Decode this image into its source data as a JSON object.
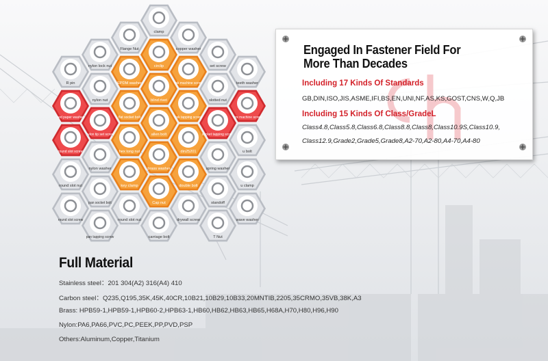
{
  "hexagons": [
    {
      "label": "clamp",
      "style": "gray"
    },
    {
      "label": "Flange Nut",
      "style": "gray"
    },
    {
      "label": "copper washer",
      "style": "gray"
    },
    {
      "label": "nylon lock nut",
      "style": "gray"
    },
    {
      "label": "circlip",
      "style": "orange"
    },
    {
      "label": "set screw",
      "style": "gray"
    },
    {
      "label": "R pin",
      "style": "gray"
    },
    {
      "label": "EPDM washer",
      "style": "orange"
    },
    {
      "label": "csk machine screw",
      "style": "orange"
    },
    {
      "label": "teeth washer",
      "style": "gray"
    },
    {
      "label": "nylon nut",
      "style": "gray"
    },
    {
      "label": "blind rivet",
      "style": "orange"
    },
    {
      "label": "slotted nut",
      "style": "gray"
    },
    {
      "label": "red paper washer",
      "style": "red"
    },
    {
      "label": "flat socket bolt",
      "style": "orange"
    },
    {
      "label": "csk tapping screw",
      "style": "orange"
    },
    {
      "label": "torx machine screw",
      "style": "red"
    },
    {
      "label": "nylon tip set screw",
      "style": "red"
    },
    {
      "label": "allen bolt",
      "style": "orange"
    },
    {
      "label": "round slot screw",
      "style": "red"
    },
    {
      "label": "hex long nut",
      "style": "orange"
    },
    {
      "label": "din25201",
      "style": "orange"
    },
    {
      "label": "socket tapping screw",
      "style": "red"
    },
    {
      "label": "u bolt",
      "style": "gray"
    },
    {
      "label": "nylon washer",
      "style": "gray"
    },
    {
      "label": "brass washer",
      "style": "orange"
    },
    {
      "label": "spring washer",
      "style": "gray"
    },
    {
      "label": "round slot nut",
      "style": "gray"
    },
    {
      "label": "key clamp",
      "style": "orange"
    },
    {
      "label": "double bolt",
      "style": "orange"
    },
    {
      "label": "u clamp",
      "style": "gray"
    },
    {
      "label": "pan socket bolt",
      "style": "gray"
    },
    {
      "label": "Cap nut",
      "style": "orange"
    },
    {
      "label": "standoff",
      "style": "gray"
    },
    {
      "label": "round slot screw",
      "style": "gray"
    },
    {
      "label": "round slot nut",
      "style": "gray"
    },
    {
      "label": "drywall screw",
      "style": "gray"
    },
    {
      "label": "wave washer",
      "style": "gray"
    },
    {
      "label": "pan tapping screw",
      "style": "gray"
    },
    {
      "label": "carriage bolt",
      "style": "gray"
    },
    {
      "label": "T Nut",
      "style": "gray"
    }
  ],
  "panel": {
    "title_line1": "Engaged In Fastener Field For",
    "title_line2": "More Than Decades",
    "standards_heading": "Including 17 Kinds Of Standards",
    "standards_list": "GB,DIN,ISO,JIS,ASME,IFI,BS,EN,UNI,NF,AS,KS,GOST,CNS,W,Q,JB",
    "class_heading": "Including 15 Kinds Of Class/GradeL",
    "class_line1": "Class4.8,Class5.8,Class6.8,Class8.8,Class8,Class10.9S,Class10.9,",
    "class_line2": "Class12.9,Grade2,Grade5,Grade8,A2-70,A2-80,A4-70,A4-80"
  },
  "material": {
    "title": "Full Material",
    "lines": [
      "Stainless steel：201 304(A2) 316(A4) 410",
      "Carbon steel：Q235,Q195,35K,45K,40CR,10B21,10B29,10B33,20MNTIB,2205,35CRMO,35VB,38K,A3",
      "Brass: HPB59-1,HPB59-1,HPB60-2,HPB63-1,HB60,HB62,HB63,HB65,H68A,H70,H80,H96,H90",
      "Nylon:PA6,PA66,PVC,PC,PEEK,PP,PVD,PSP",
      "Others:Aluminum,Copper,Titanium"
    ]
  },
  "colors": {
    "accent_red": "#d3222a",
    "orange_hex": "#f0962a",
    "red_hex": "#e2363a",
    "gray_hex": "#c9ccd1"
  }
}
